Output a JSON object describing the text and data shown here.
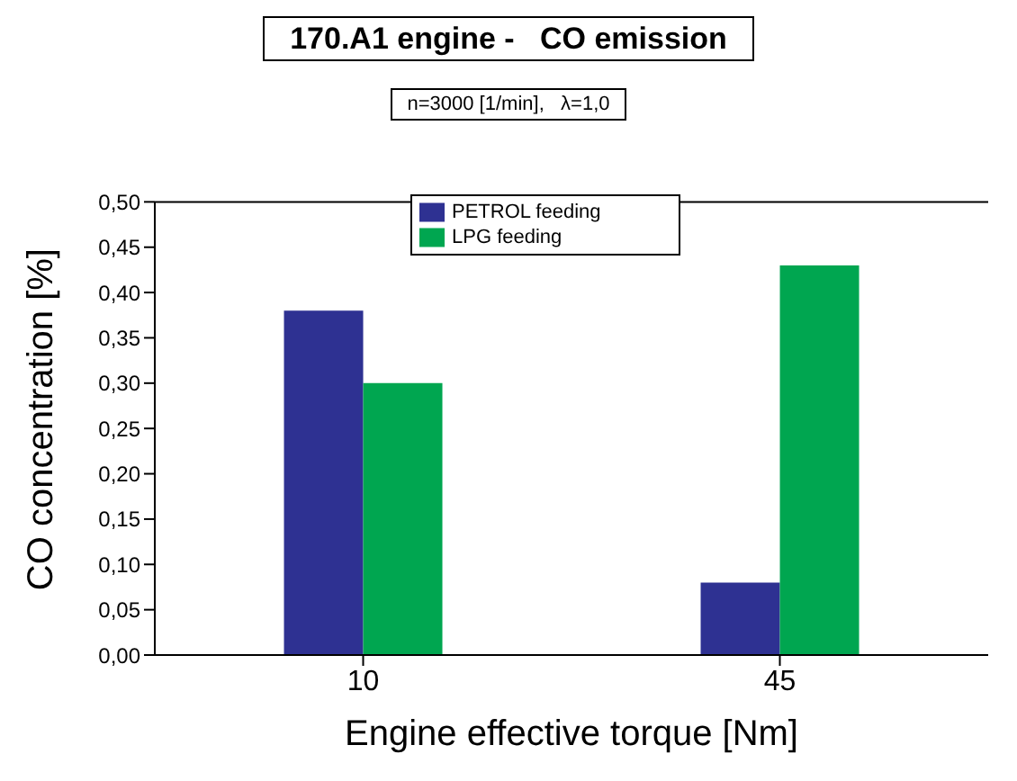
{
  "chart_data": {
    "type": "bar",
    "title": "170.A1 engine -   CO emission",
    "subtitle": "n=3000 [1/min],   λ=1,0",
    "xlabel": "Engine effective torque [Nm]",
    "ylabel": "CO concentration  [%]",
    "categories": [
      "10",
      "45"
    ],
    "series": [
      {
        "name": "PETROL feeding",
        "color": "#2e3192",
        "values": [
          0.38,
          0.08
        ]
      },
      {
        "name": "LPG feeding",
        "color": "#00a650",
        "values": [
          0.3,
          0.43
        ]
      }
    ],
    "ylim": [
      0,
      0.5
    ],
    "yticks": [
      {
        "value": 0,
        "label": "0,00"
      },
      {
        "value": 0.05,
        "label": "0,05"
      },
      {
        "value": 0.1,
        "label": "0,10"
      },
      {
        "value": 0.15,
        "label": "0,15"
      },
      {
        "value": 0.2,
        "label": "0,20"
      },
      {
        "value": 0.25,
        "label": "0,25"
      },
      {
        "value": 0.3,
        "label": "0,30"
      },
      {
        "value": 0.35,
        "label": "0,35"
      },
      {
        "value": 0.4,
        "label": "0,40"
      },
      {
        "value": 0.45,
        "label": "0,45"
      },
      {
        "value": 0.5,
        "label": "0,50"
      }
    ],
    "grid": false,
    "legend": "top"
  }
}
